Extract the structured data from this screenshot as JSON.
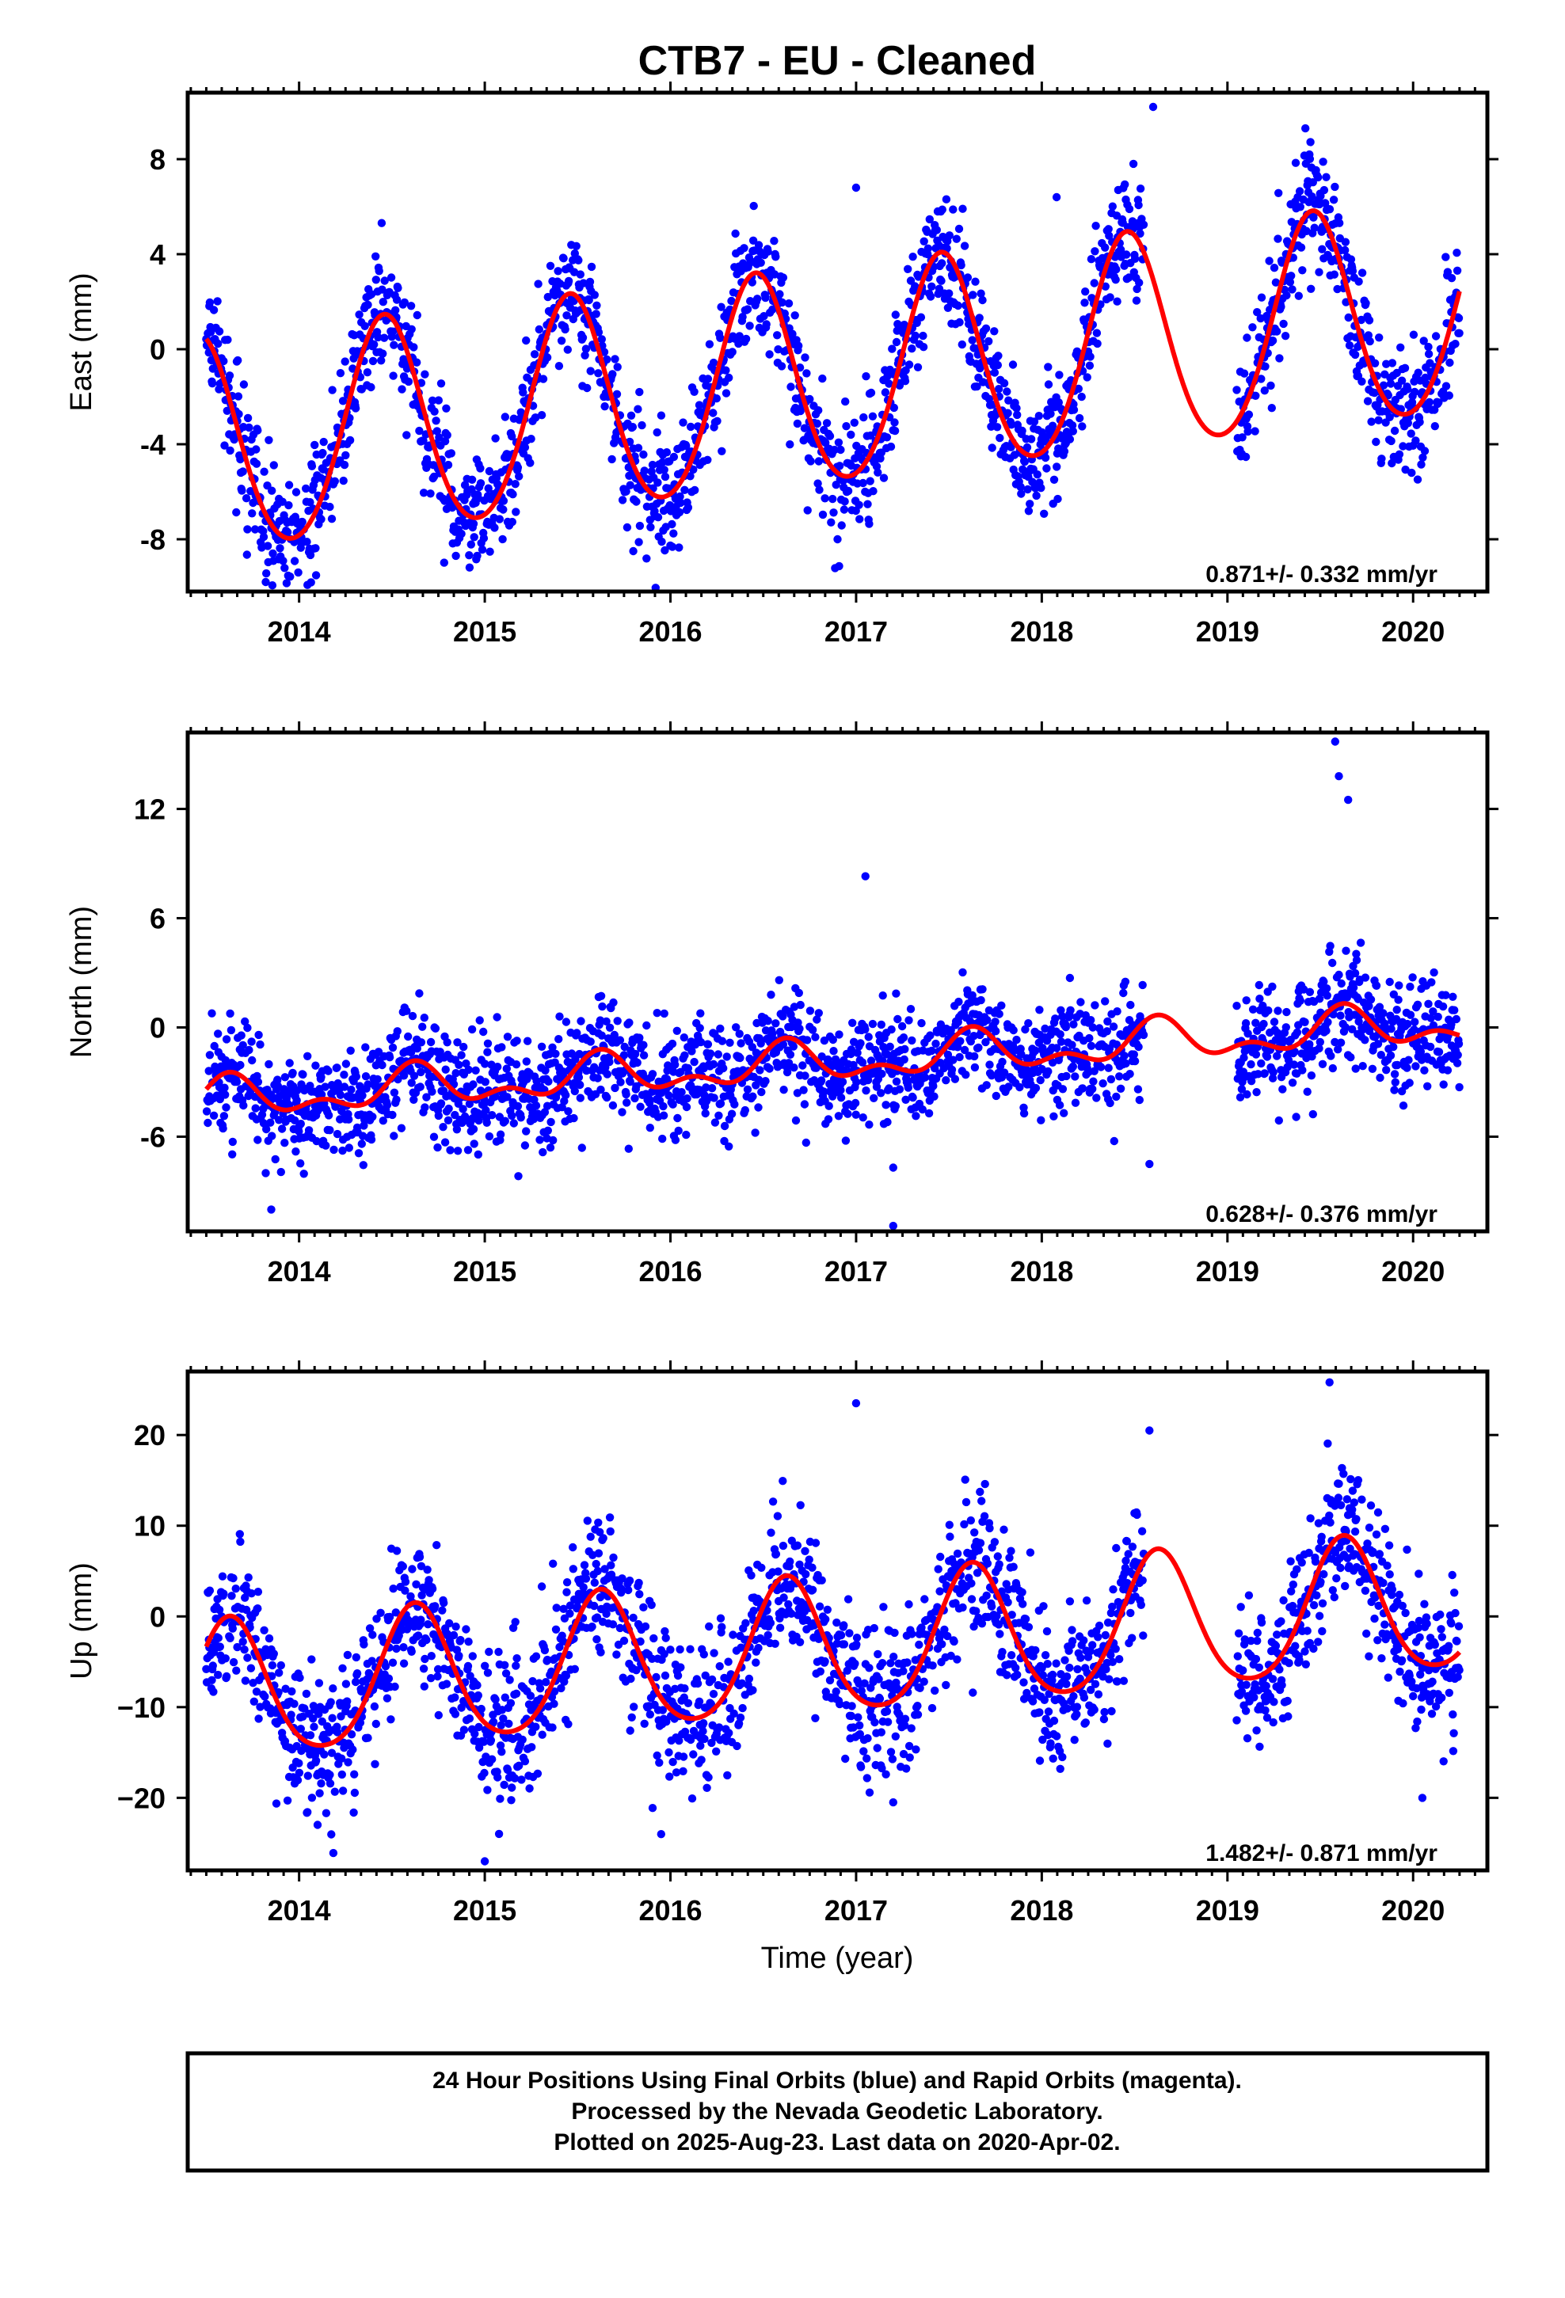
{
  "title": "CTB7  - EU - Cleaned",
  "xlabel": "Time (year)",
  "footer": {
    "line1": "24 Hour Positions Using Final Orbits (blue) and Rapid Orbits (magenta).",
    "line2": "Processed by the Nevada Geodetic Laboratory.",
    "line3": "Plotted on 2025-Aug-23. Last data on 2020-Apr-02."
  },
  "colors": {
    "points": "#0000ff",
    "model": "#ff0000",
    "axes": "#000000"
  },
  "chart_data": [
    {
      "type": "scatter",
      "component": "east",
      "ylabel": "East (mm)",
      "rate": "0.871+/- 0.332 mm/yr",
      "xlim": [
        2013.4,
        2020.4
      ],
      "ylim": [
        -10.2,
        10.8
      ],
      "xticks": [
        "2014",
        "2015",
        "2016",
        "2017",
        "2018",
        "2019",
        "2020"
      ],
      "yticks": [
        "8",
        "4",
        "0",
        "-4",
        "-8"
      ],
      "model": {
        "offset": -1.3,
        "rate": 0.871,
        "amp": 4.5,
        "peak_month": 5.5,
        "semi_amp": 0.4
      },
      "point_spread": 1.3,
      "segments": [
        [
          2013.5,
          2018.55
        ],
        [
          2019.05,
          2020.25
        ]
      ],
      "outliers": [
        [
          2013.82,
          -9.8
        ],
        [
          2015.8,
          -8.5
        ],
        [
          2016.9,
          -8.0
        ],
        [
          2018.6,
          10.2
        ],
        [
          2019.8,
          -3.9
        ],
        [
          2018.08,
          6.4
        ],
        [
          2017.0,
          6.8
        ]
      ]
    },
    {
      "type": "scatter",
      "component": "north",
      "ylabel": "North (mm)",
      "rate": "0.628+/- 0.376 mm/yr",
      "xlim": [
        2013.4,
        2020.4
      ],
      "ylim": [
        -11.2,
        16.2
      ],
      "xticks": [
        "2014",
        "2015",
        "2016",
        "2017",
        "2018",
        "2019",
        "2020"
      ],
      "yticks": [
        "12",
        "6",
        "0",
        "-6"
      ],
      "model": {
        "offset": -1.9,
        "rate": 0.628,
        "amp": 0.9,
        "peak_month": 7.5,
        "semi_amp": 0.6
      },
      "point_spread": 1.5,
      "segments": [
        [
          2013.5,
          2018.55
        ],
        [
          2019.05,
          2020.25
        ]
      ],
      "outliers": [
        [
          2013.82,
          -8.0
        ],
        [
          2013.85,
          -10.0
        ],
        [
          2017.2,
          -10.9
        ],
        [
          2017.2,
          -7.7
        ],
        [
          2018.58,
          -7.5
        ],
        [
          2019.58,
          15.7
        ],
        [
          2019.6,
          13.8
        ],
        [
          2019.65,
          12.5
        ],
        [
          2017.05,
          8.3
        ]
      ]
    },
    {
      "type": "scatter",
      "component": "up",
      "ylabel": "Up (mm)",
      "rate": "1.482+/- 0.871 mm/yr",
      "xlim": [
        2013.4,
        2020.4
      ],
      "ylim": [
        -28.0,
        27.0
      ],
      "xticks": [
        "2014",
        "2015",
        "2016",
        "2017",
        "2018",
        "2019",
        "2020"
      ],
      "yticks": [
        "20",
        "10",
        "0",
        "−10",
        "−20"
      ],
      "model": {
        "offset": -3.6,
        "rate": 1.482,
        "amp": 7.5,
        "peak_month": 7.5,
        "semi_amp": 1.0
      },
      "point_spread": 4.0,
      "segments": [
        [
          2013.5,
          2018.55
        ],
        [
          2019.05,
          2020.25
        ]
      ],
      "outliers": [
        [
          2015.0,
          -27.0
        ],
        [
          2015.95,
          -24.0
        ],
        [
          2017.0,
          23.5
        ],
        [
          2019.55,
          25.8
        ],
        [
          2020.05,
          -20.0
        ],
        [
          2017.2,
          -20.5
        ],
        [
          2018.58,
          20.5
        ]
      ]
    }
  ]
}
